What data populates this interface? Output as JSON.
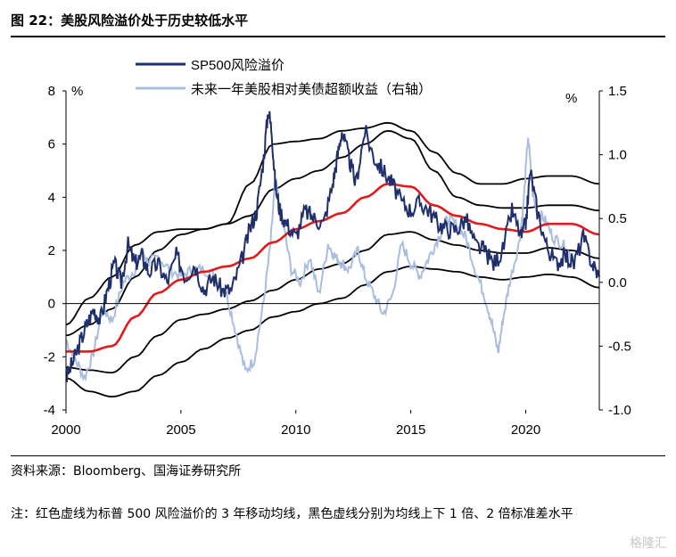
{
  "title": "图 22：美股风险溢价处于历史较低水平",
  "source": "资料来源：Bloomberg、国海证券研究所",
  "note": "注：红色虚线为标普 500 风险溢价的 3 年移动均线，黑色虚线分别为均线上下 1 倍、2 倍标准差水平",
  "watermark": "格隆汇",
  "colors": {
    "erp": "#1f2f6b",
    "excess": "#a9bedf",
    "ma": "#e31a1c",
    "band": "#000000"
  },
  "chart_data": {
    "type": "line",
    "left_unit": "%",
    "right_unit": "%",
    "xlim": [
      2000,
      2023.2
    ],
    "ylim_left": [
      -4,
      8
    ],
    "ylim_right": [
      -1.0,
      1.5
    ],
    "x_ticks": [
      2000,
      2005,
      2010,
      2015,
      2020
    ],
    "y_ticks_left": [
      -4,
      -2,
      0,
      2,
      4,
      6,
      8
    ],
    "y_ticks_right": [
      -1.0,
      -0.5,
      0.0,
      0.5,
      1.0,
      1.5
    ],
    "legend": [
      {
        "name": "SP500风险溢价",
        "axis": "left"
      },
      {
        "name": "未来一年美股相对美债超额收益（右轴）",
        "axis": "right"
      }
    ],
    "series": [
      {
        "name": "SP500风险溢价",
        "axis": "left",
        "x": [
          2000,
          2000.3,
          2000.6,
          2000.9,
          2001.2,
          2001.5,
          2001.8,
          2002.1,
          2002.4,
          2002.7,
          2003.0,
          2003.3,
          2003.6,
          2004.0,
          2004.4,
          2004.8,
          2005.2,
          2005.6,
          2006.0,
          2006.4,
          2006.8,
          2007.2,
          2007.6,
          2008.0,
          2008.3,
          2008.6,
          2008.8,
          2008.95,
          2009.1,
          2009.3,
          2009.6,
          2010.0,
          2010.4,
          2010.8,
          2011.2,
          2011.6,
          2011.8,
          2012.0,
          2012.3,
          2012.6,
          2013.0,
          2013.4,
          2013.8,
          2014.2,
          2014.6,
          2015.0,
          2015.4,
          2015.8,
          2016.2,
          2016.6,
          2017.0,
          2017.4,
          2017.8,
          2018.2,
          2018.6,
          2019.0,
          2019.4,
          2019.8,
          2020.0,
          2020.2,
          2020.5,
          2020.9,
          2021.3,
          2021.7,
          2022.1,
          2022.5,
          2022.9,
          2023.2
        ],
        "values": [
          -2.8,
          -2.2,
          -1.5,
          -0.8,
          -0.2,
          -0.6,
          0.5,
          1.5,
          0.8,
          2.2,
          1.5,
          1.8,
          1.2,
          1.5,
          0.8,
          1.8,
          1.0,
          1.5,
          0.5,
          1.0,
          0.5,
          0.5,
          1.5,
          2.8,
          3.5,
          5.5,
          7.3,
          6.5,
          4.5,
          3.5,
          3.0,
          2.5,
          3.5,
          3.2,
          3.0,
          4.5,
          5.5,
          6.5,
          5.5,
          4.5,
          6.5,
          5.5,
          5.0,
          4.5,
          3.8,
          3.5,
          3.8,
          3.5,
          3.0,
          2.8,
          2.8,
          3.2,
          2.2,
          2.0,
          1.5,
          2.0,
          3.5,
          2.5,
          3.0,
          5.0,
          3.5,
          2.2,
          1.5,
          1.8,
          1.5,
          2.5,
          1.5,
          1.0
        ]
      },
      {
        "name": "3年移动均线",
        "axis": "left",
        "x": [
          2000,
          2001,
          2002,
          2003,
          2004,
          2005,
          2006,
          2007,
          2008,
          2009,
          2010,
          2011,
          2012,
          2013,
          2014,
          2015,
          2016,
          2017,
          2018,
          2019,
          2020,
          2021,
          2022,
          2023.2
        ],
        "values": [
          -1.8,
          -1.8,
          -1.6,
          -0.5,
          0.4,
          0.9,
          1.2,
          1.4,
          1.7,
          2.3,
          2.8,
          3.1,
          3.4,
          4.0,
          4.5,
          4.4,
          3.7,
          3.3,
          3.0,
          2.8,
          2.7,
          3.0,
          3.0,
          2.6
        ]
      },
      {
        "name": "+1倍标准差",
        "axis": "left",
        "x": [
          2000,
          2001,
          2002,
          2003,
          2004,
          2005,
          2006,
          2007,
          2008,
          2009,
          2010,
          2011,
          2012,
          2013,
          2014,
          2015,
          2016,
          2017,
          2018,
          2019,
          2020,
          2021,
          2022,
          2023.2
        ],
        "values": [
          -1.2,
          -0.8,
          -0.2,
          1.0,
          2.0,
          2.6,
          2.8,
          3.0,
          3.3,
          4.3,
          4.7,
          5.0,
          5.5,
          6.0,
          6.5,
          6.2,
          5.0,
          4.0,
          3.7,
          3.6,
          3.6,
          3.7,
          3.7,
          3.5
        ]
      },
      {
        "name": "-1倍标准差",
        "axis": "left",
        "x": [
          2000,
          2001,
          2002,
          2003,
          2004,
          2005,
          2006,
          2007,
          2008,
          2009,
          2010,
          2011,
          2012,
          2013,
          2014,
          2015,
          2016,
          2017,
          2018,
          2019,
          2020,
          2021,
          2022,
          2023.2
        ],
        "values": [
          -2.4,
          -2.5,
          -2.6,
          -2.0,
          -1.2,
          -0.6,
          -0.4,
          -0.2,
          0.1,
          0.5,
          0.9,
          1.3,
          1.5,
          2.0,
          2.6,
          2.7,
          2.4,
          2.2,
          2.0,
          1.9,
          1.9,
          2.1,
          2.0,
          1.7
        ]
      },
      {
        "name": "+2倍标准差",
        "axis": "left",
        "x": [
          2000,
          2001,
          2002,
          2003,
          2004,
          2005,
          2006,
          2007,
          2008,
          2009,
          2010,
          2011,
          2012,
          2013,
          2014,
          2015,
          2016,
          2017,
          2018,
          2019,
          2020,
          2021,
          2022,
          2023.2
        ],
        "values": [
          -0.8,
          0.2,
          1.0,
          2.2,
          2.7,
          2.8,
          2.8,
          3.0,
          4.5,
          6.0,
          6.1,
          6.2,
          6.5,
          6.6,
          6.8,
          6.5,
          5.7,
          4.9,
          4.5,
          4.5,
          4.7,
          4.8,
          4.8,
          4.5
        ]
      },
      {
        "name": "-2倍标准差",
        "axis": "left",
        "x": [
          2000,
          2001,
          2002,
          2003,
          2004,
          2005,
          2006,
          2007,
          2008,
          2009,
          2010,
          2011,
          2012,
          2013,
          2014,
          2015,
          2016,
          2017,
          2018,
          2019,
          2020,
          2021,
          2022,
          2023.2
        ],
        "values": [
          -2.8,
          -3.3,
          -3.5,
          -3.3,
          -2.7,
          -2.2,
          -1.7,
          -1.3,
          -1.0,
          -0.5,
          -0.3,
          0.0,
          0.2,
          0.7,
          1.2,
          1.4,
          1.3,
          1.2,
          1.0,
          0.9,
          1.0,
          1.1,
          1.0,
          0.6
        ]
      },
      {
        "name": "未来一年美股相对美债超额收益（右轴）",
        "axis": "right",
        "x": [
          2000,
          2000.4,
          2000.8,
          2001.2,
          2001.6,
          2002.0,
          2002.5,
          2003.0,
          2003.3,
          2003.6,
          2004.0,
          2004.5,
          2005.0,
          2005.5,
          2006.0,
          2006.5,
          2007.0,
          2007.4,
          2007.8,
          2008.2,
          2008.6,
          2008.9,
          2009.1,
          2009.4,
          2009.8,
          2010.2,
          2010.6,
          2011.0,
          2011.4,
          2011.7,
          2012.0,
          2012.3,
          2012.7,
          2013.0,
          2013.4,
          2013.8,
          2014.2,
          2014.6,
          2015.0,
          2015.4,
          2015.8,
          2016.2,
          2016.6,
          2017.0,
          2017.4,
          2017.8,
          2018.2,
          2018.5,
          2018.8,
          2019.0,
          2019.3,
          2019.7,
          2019.9,
          2020.1,
          2020.3,
          2020.5,
          2020.8,
          2021.2,
          2021.6,
          2022.0
        ],
        "values": [
          -0.45,
          -0.6,
          -0.75,
          -0.55,
          -0.2,
          -0.3,
          0.0,
          0.1,
          0.25,
          0.15,
          0.2,
          0.1,
          0.05,
          0.1,
          0.1,
          0.05,
          -0.1,
          -0.4,
          -0.7,
          -0.6,
          -0.15,
          0.3,
          0.8,
          0.5,
          0.1,
          0.0,
          0.2,
          -0.1,
          0.3,
          0.2,
          0.15,
          0.1,
          0.25,
          0.05,
          -0.1,
          -0.25,
          -0.1,
          0.3,
          0.15,
          0.05,
          0.2,
          0.35,
          0.5,
          0.45,
          0.35,
          0.1,
          -0.1,
          -0.3,
          -0.55,
          -0.3,
          0.0,
          0.3,
          0.6,
          1.15,
          0.7,
          0.55,
          0.5,
          0.35,
          0.3,
          0.2
        ]
      }
    ]
  }
}
